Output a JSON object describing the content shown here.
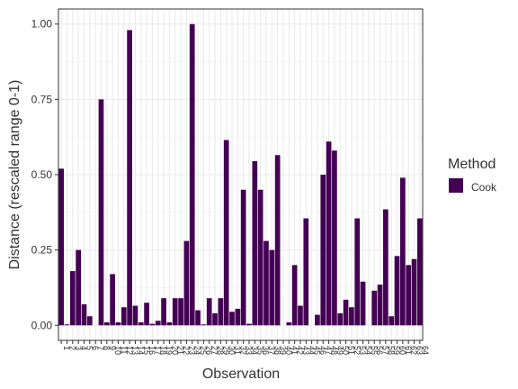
{
  "chart_data": {
    "type": "bar",
    "y_label": "Distance (rescaled range 0-1)",
    "x_label": "Observation",
    "legend_title": "Method",
    "categories": [
      "1",
      "2",
      "3",
      "4",
      "5",
      "6",
      "7",
      "8",
      "9",
      "10",
      "11",
      "12",
      "13",
      "14",
      "15",
      "16",
      "17",
      "18",
      "19",
      "20",
      "21",
      "22",
      "23",
      "24",
      "25",
      "26",
      "27",
      "28",
      "29",
      "30",
      "31",
      "32",
      "33",
      "34",
      "35",
      "36",
      "37",
      "38",
      "39",
      "40",
      "41",
      "42",
      "43",
      "44",
      "45",
      "46",
      "47",
      "48",
      "49",
      "50",
      "51",
      "52",
      "53",
      "54",
      "55",
      "56",
      "57",
      "58",
      "59",
      "60",
      "61",
      "62",
      "63",
      "64"
    ],
    "series": [
      {
        "name": "Cook",
        "color": "#440154",
        "values": [
          0.52,
          0.003,
          0.18,
          0.25,
          0.07,
          0.03,
          0,
          0.75,
          0.01,
          0.17,
          0.01,
          0.06,
          0.98,
          0.065,
          0.01,
          0.075,
          0.005,
          0.015,
          0.09,
          0.01,
          0.09,
          0.09,
          0.28,
          1.0,
          0.05,
          0.003,
          0.09,
          0.04,
          0.09,
          0.615,
          0.045,
          0.055,
          0.45,
          0.005,
          0.545,
          0.45,
          0.28,
          0.25,
          0.565,
          0,
          0.01,
          0.2,
          0.065,
          0.355,
          0,
          0.035,
          0.5,
          0.61,
          0.58,
          0.04,
          0.085,
          0.06,
          0.355,
          0.145,
          0,
          0.115,
          0.135,
          0.385,
          0.03,
          0.23,
          0.49,
          0.2,
          0.22,
          0.355
        ]
      }
    ],
    "ylim": [
      -0.05,
      1.05
    ],
    "yticks": [
      {
        "value": 0,
        "label": "0.00"
      },
      {
        "value": 0.25,
        "label": "0.25"
      },
      {
        "value": 0.5,
        "label": "0.50"
      },
      {
        "value": 0.75,
        "label": "0.75"
      },
      {
        "value": 1,
        "label": "1.00"
      }
    ],
    "y_minor_ticks": [
      0.125,
      0.375,
      0.625,
      0.875
    ],
    "grid": true,
    "legend": "right"
  }
}
